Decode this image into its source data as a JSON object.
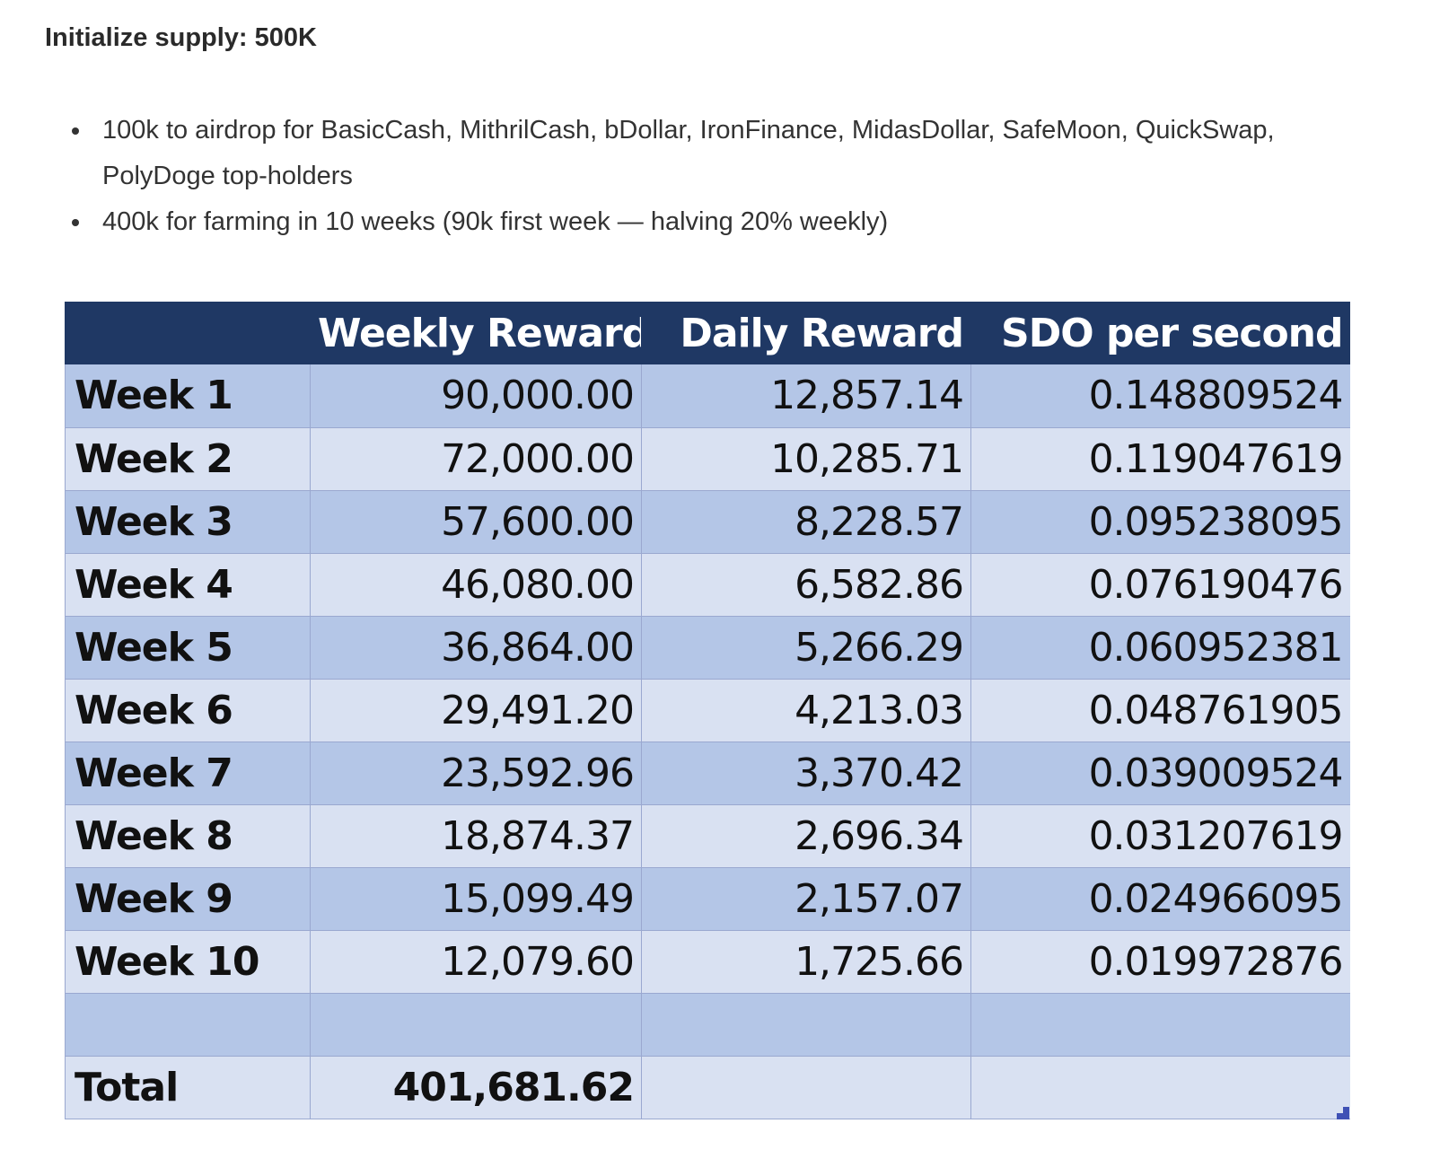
{
  "heading": "Initialize supply: 500K",
  "bullets": [
    "100k to airdrop for BasicCash, MithrilCash, bDollar, IronFinance, MidasDollar, SafeMoon, QuickSwap, PolyDoge top-holders",
    "400k for farming in 10 weeks (90k first week — halving 20% weekly)"
  ],
  "table": {
    "headers": [
      "",
      "Weekly Reward",
      "Daily Reward",
      "SDO per second"
    ],
    "rows": [
      [
        "Week 1",
        "90,000.00",
        "12,857.14",
        "0.148809524"
      ],
      [
        "Week 2",
        "72,000.00",
        "10,285.71",
        "0.119047619"
      ],
      [
        "Week 3",
        "57,600.00",
        "8,228.57",
        "0.095238095"
      ],
      [
        "Week 4",
        "46,080.00",
        "6,582.86",
        "0.076190476"
      ],
      [
        "Week 5",
        "36,864.00",
        "5,266.29",
        "0.060952381"
      ],
      [
        "Week 6",
        "29,491.20",
        "4,213.03",
        "0.048761905"
      ],
      [
        "Week 7",
        "23,592.96",
        "3,370.42",
        "0.039009524"
      ],
      [
        "Week 8",
        "18,874.37",
        "2,696.34",
        "0.031207619"
      ],
      [
        "Week 9",
        "15,099.49",
        "2,157.07",
        "0.024966095"
      ],
      [
        "Week 10",
        "12,079.60",
        "1,725.66",
        "0.019972876"
      ],
      [
        "",
        "",
        "",
        ""
      ],
      [
        "Total",
        "401,681.62",
        "",
        ""
      ]
    ]
  },
  "colors": {
    "header_bg": "#1f3864",
    "row_dark": "#b4c6e7",
    "row_light": "#d9e1f2",
    "border": "#9aa8d0",
    "resize_mark": "#3f51b5"
  }
}
